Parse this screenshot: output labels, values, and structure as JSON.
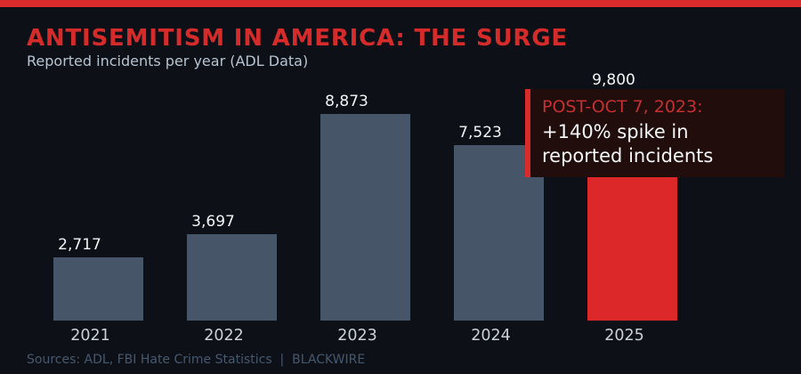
{
  "page": {
    "title": "ANTISEMITISM IN AMERICA: THE SURGE",
    "subtitle": "Reported incidents per year (ADL Data)",
    "footer": "Sources: ADL, FBI Hate Crime Statistics  |  BLACKWIRE"
  },
  "callout": {
    "heading": "POST-OCT 7, 2023:",
    "line1": "+140% spike in",
    "line2": "reported incidents"
  },
  "colors": {
    "background": "#0d1117",
    "accent_red": "#d92b2b",
    "title_red": "#d62b2b",
    "bar_default": "#475569",
    "bar_highlight": "#dc2828",
    "callout_bg": "#200d0c",
    "callout_heading": "#c63030"
  },
  "chart_data": {
    "type": "bar",
    "title": "ANTISEMITISM IN AMERICA: THE SURGE",
    "subtitle": "Reported incidents per year (ADL Data)",
    "categories": [
      "2021",
      "2022",
      "2023",
      "2024",
      "2025"
    ],
    "values": [
      2717,
      3697,
      8873,
      7523,
      9800
    ],
    "value_labels": [
      "2,717",
      "3,697",
      "8,873",
      "7,523",
      "9,800"
    ],
    "highlight_index": 4,
    "annotation": "POST-OCT 7, 2023: +140% spike in reported incidents",
    "xlabel": "",
    "ylabel": "",
    "ylim": [
      0,
      10500
    ],
    "grid": false,
    "legend": false,
    "source": "Sources: ADL, FBI Hate Crime Statistics  |  BLACKWIRE"
  }
}
